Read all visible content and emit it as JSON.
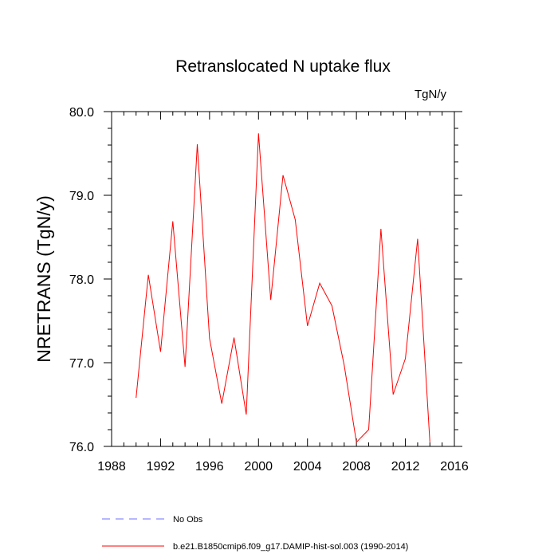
{
  "chart_data": {
    "type": "line",
    "title": "Retranslocated N uptake flux",
    "units_label": "TgN/y",
    "ylabel": "NRETRANS  (TgN/y)",
    "xlabel": "",
    "xlim": [
      1988,
      2016
    ],
    "ylim": [
      76.0,
      80.0
    ],
    "x_major_ticks": [
      1988,
      1992,
      1996,
      2000,
      2004,
      2008,
      2012,
      2016
    ],
    "y_major_ticks": [
      76.0,
      77.0,
      78.0,
      79.0,
      80.0
    ],
    "x_tick_labels": [
      "1988",
      "1992",
      "1996",
      "2000",
      "2004",
      "2008",
      "2012",
      "2016"
    ],
    "y_tick_labels": [
      "76.0",
      "77.0",
      "78.0",
      "79.0",
      "80.0"
    ],
    "grid": false,
    "legend_position": "bottom",
    "series": [
      {
        "name": "b.e21.B1850cmip6.f09_g17.DAMIP-hist-sol.003 (1990-2014)",
        "color": "#ff0000",
        "style": "solid",
        "x": [
          1990,
          1991,
          1992,
          1993,
          1994,
          1995,
          1996,
          1997,
          1998,
          1999,
          2000,
          2001,
          2002,
          2003,
          2004,
          2005,
          2006,
          2007,
          2008,
          2009,
          2010,
          2011,
          2012,
          2013,
          2014
        ],
        "values": [
          76.58,
          78.05,
          77.13,
          78.69,
          76.95,
          79.61,
          77.29,
          76.51,
          77.3,
          76.38,
          79.74,
          77.75,
          79.24,
          78.71,
          77.44,
          77.95,
          77.68,
          76.97,
          76.05,
          76.2,
          78.6,
          76.62,
          77.05,
          78.48,
          76.05
        ]
      }
    ],
    "legend": [
      {
        "label": "No Obs",
        "color": "#6f6fff",
        "style": "dashed"
      },
      {
        "label": "b.e21.B1850cmip6.f09_g17.DAMIP-hist-sol.003 (1990-2014)",
        "color": "#ff0000",
        "style": "solid"
      }
    ]
  }
}
